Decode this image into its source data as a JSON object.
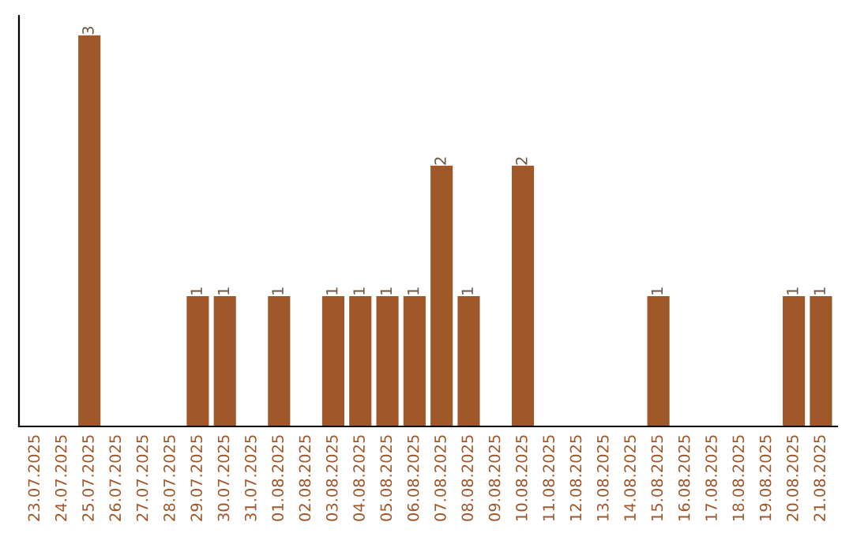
{
  "chart_data": {
    "type": "bar",
    "categories": [
      "23.07.2025",
      "24.07.2025",
      "25.07.2025",
      "26.07.2025",
      "27.07.2025",
      "28.07.2025",
      "29.07.2025",
      "30.07.2025",
      "31.07.2025",
      "01.08.2025",
      "02.08.2025",
      "03.08.2025",
      "04.08.2025",
      "05.08.2025",
      "06.08.2025",
      "07.08.2025",
      "08.08.2025",
      "09.08.2025",
      "10.08.2025",
      "11.08.2025",
      "12.08.2025",
      "13.08.2025",
      "14.08.2025",
      "15.08.2025",
      "16.08.2025",
      "17.08.2025",
      "18.08.2025",
      "19.08.2025",
      "20.08.2025",
      "21.08.2025"
    ],
    "values": [
      0,
      0,
      3,
      0,
      0,
      0,
      1,
      1,
      0,
      1,
      0,
      1,
      1,
      1,
      1,
      2,
      1,
      0,
      2,
      0,
      0,
      0,
      0,
      1,
      0,
      0,
      0,
      0,
      1,
      1
    ],
    "value_labels": [
      null,
      null,
      "3",
      null,
      null,
      null,
      "1",
      "1",
      null,
      "1",
      null,
      "1",
      "1",
      "1",
      "1",
      "2",
      "1",
      null,
      "2",
      null,
      null,
      null,
      null,
      "1",
      null,
      null,
      null,
      null,
      "1",
      "1"
    ],
    "color": "#a0572a",
    "tick_labels": "x",
    "grid": false,
    "legend": false
  }
}
